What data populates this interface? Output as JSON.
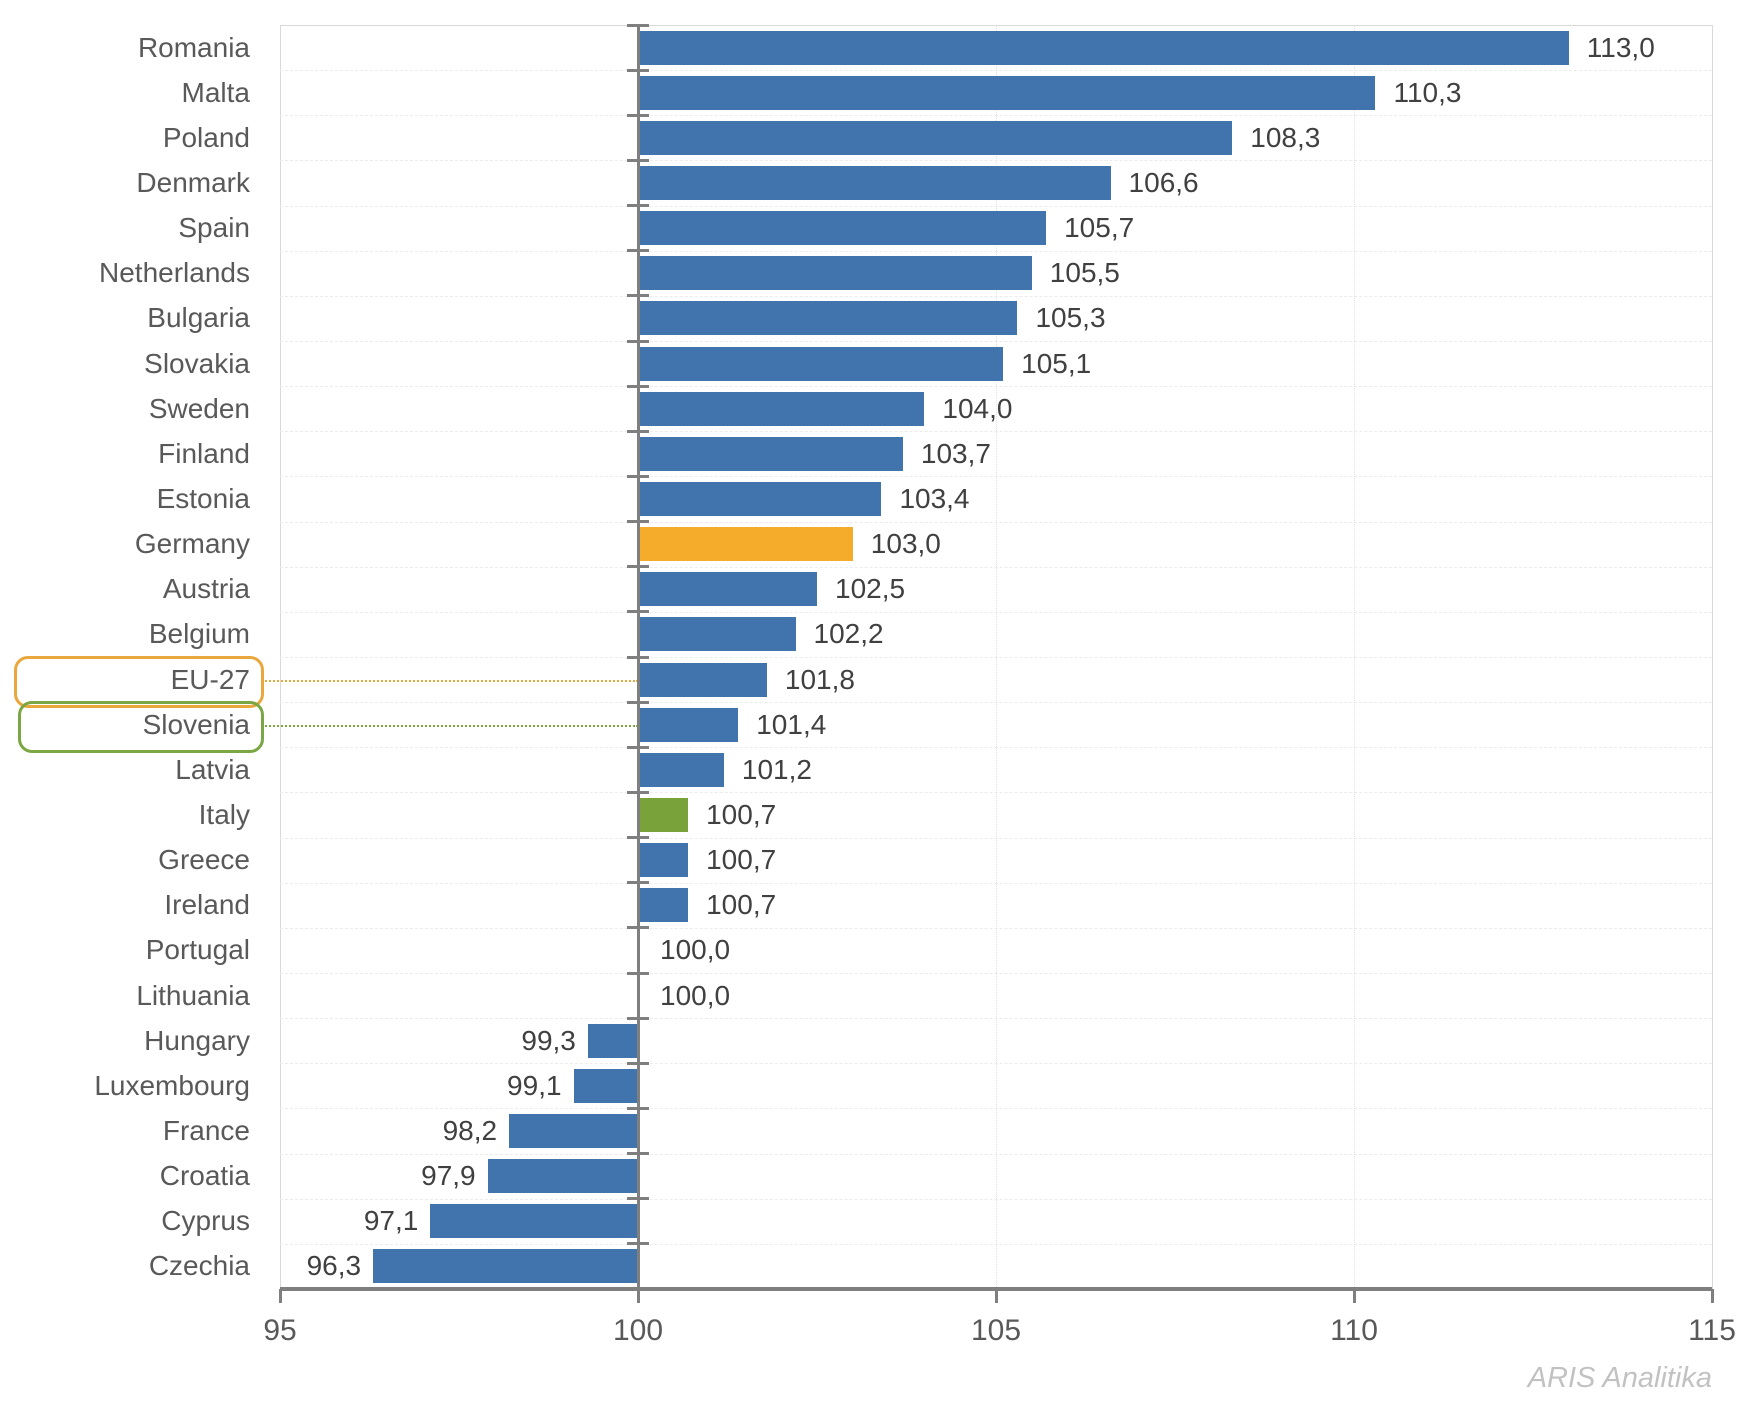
{
  "chart_data": {
    "type": "bar",
    "orientation": "horizontal",
    "title": "",
    "xlabel": "",
    "ylabel": "",
    "xlim": [
      95,
      115
    ],
    "baseline": 100,
    "grid": "faint dashed row separators; faint dotted vertical lines at 105 and 110",
    "legend": "none",
    "value_format": "decimal-comma, one decimal place",
    "x_axis": {
      "ticks": [
        95,
        100,
        105,
        110,
        115
      ],
      "tick_labels": [
        "95",
        "100",
        "105",
        "110",
        "115"
      ]
    },
    "colors": {
      "blue": "#4173ad",
      "orange": "#f4ac2a",
      "green": "#7aa23b",
      "label_gray": "#595959",
      "value_gray": "#404040",
      "axis_gray": "#7f7f7f",
      "orange_box_border": "#e9a73c",
      "green_box_border": "#7ba644"
    },
    "rows": [
      {
        "label": "Romania",
        "value": 113.0,
        "value_label": "113,0",
        "bar_color": "blue"
      },
      {
        "label": "Malta",
        "value": 110.3,
        "value_label": "110,3",
        "bar_color": "blue"
      },
      {
        "label": "Poland",
        "value": 108.3,
        "value_label": "108,3",
        "bar_color": "blue"
      },
      {
        "label": "Denmark",
        "value": 106.6,
        "value_label": "106,6",
        "bar_color": "blue"
      },
      {
        "label": "Spain",
        "value": 105.7,
        "value_label": "105,7",
        "bar_color": "blue"
      },
      {
        "label": "Netherlands",
        "value": 105.5,
        "value_label": "105,5",
        "bar_color": "blue"
      },
      {
        "label": "Bulgaria",
        "value": 105.3,
        "value_label": "105,3",
        "bar_color": "blue"
      },
      {
        "label": "Slovakia",
        "value": 105.1,
        "value_label": "105,1",
        "bar_color": "blue"
      },
      {
        "label": "Sweden",
        "value": 104.0,
        "value_label": "104,0",
        "bar_color": "blue"
      },
      {
        "label": "Finland",
        "value": 103.7,
        "value_label": "103,7",
        "bar_color": "blue"
      },
      {
        "label": "Estonia",
        "value": 103.4,
        "value_label": "103,4",
        "bar_color": "blue"
      },
      {
        "label": "Germany",
        "value": 103.0,
        "value_label": "103,0",
        "bar_color": "orange"
      },
      {
        "label": "Austria",
        "value": 102.5,
        "value_label": "102,5",
        "bar_color": "blue"
      },
      {
        "label": "Belgium",
        "value": 102.2,
        "value_label": "102,2",
        "bar_color": "blue"
      },
      {
        "label": "EU-27",
        "value": 101.8,
        "value_label": "101,8",
        "bar_color": "blue"
      },
      {
        "label": "Slovenia",
        "value": 101.4,
        "value_label": "101,4",
        "bar_color": "blue"
      },
      {
        "label": "Latvia",
        "value": 101.2,
        "value_label": "101,2",
        "bar_color": "blue"
      },
      {
        "label": "Italy",
        "value": 100.7,
        "value_label": "100,7",
        "bar_color": "green"
      },
      {
        "label": "Greece",
        "value": 100.7,
        "value_label": "100,7",
        "bar_color": "blue"
      },
      {
        "label": "Ireland",
        "value": 100.7,
        "value_label": "100,7",
        "bar_color": "blue"
      },
      {
        "label": "Portugal",
        "value": 100.0,
        "value_label": "100,0",
        "bar_color": "blue"
      },
      {
        "label": "Lithuania",
        "value": 100.0,
        "value_label": "100,0",
        "bar_color": "blue"
      },
      {
        "label": "Hungary",
        "value": 99.3,
        "value_label": "99,3",
        "bar_color": "blue"
      },
      {
        "label": "Luxembourg",
        "value": 99.1,
        "value_label": "99,1",
        "bar_color": "blue"
      },
      {
        "label": "France",
        "value": 98.2,
        "value_label": "98,2",
        "bar_color": "blue"
      },
      {
        "label": "Croatia",
        "value": 97.9,
        "value_label": "97,9",
        "bar_color": "blue"
      },
      {
        "label": "Cyprus",
        "value": 97.1,
        "value_label": "97,1",
        "bar_color": "blue"
      },
      {
        "label": "Czechia",
        "value": 96.3,
        "value_label": "96,3",
        "bar_color": "blue"
      }
    ],
    "annotations": [
      {
        "target": "EU-27",
        "shape": "rounded-box around category label",
        "box_color": "orange",
        "leader_line": "dotted orange line from box to category axis"
      },
      {
        "target": "Slovenia",
        "shape": "rounded-box around category label",
        "box_color": "green",
        "leader_line": "dotted green line from box to category axis"
      }
    ]
  },
  "watermark": {
    "text": "ARIS Analitika"
  }
}
